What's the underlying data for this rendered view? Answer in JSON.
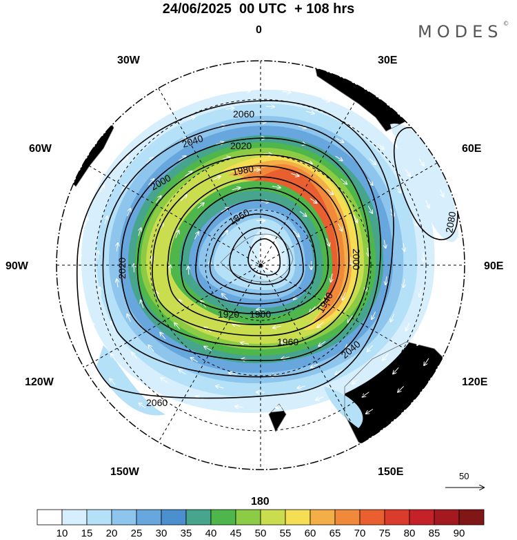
{
  "title": "24/06/2025  00 UTC  + 108 hrs",
  "brand": "MODES",
  "brand_mark": "©",
  "longitude_labels": [
    "0",
    "30E",
    "60E",
    "90E",
    "120E",
    "150E",
    "180",
    "150W",
    "120W",
    "90W",
    "60W",
    "30W"
  ],
  "contour_labels": [
    "2060",
    "2040",
    "2020",
    "2000",
    "1980",
    "1960",
    "1940",
    "1920",
    "1900",
    "1860",
    "2080",
    "2000",
    "2020",
    "2040",
    "2060"
  ],
  "reference_vector_label": "50",
  "colorbar": {
    "ticks": [
      "10",
      "15",
      "20",
      "25",
      "30",
      "35",
      "40",
      "45",
      "50",
      "55",
      "60",
      "65",
      "70",
      "75",
      "80",
      "85",
      "90"
    ],
    "colors": [
      "#ffffff",
      "#d7effc",
      "#b4e0f8",
      "#8ec5ec",
      "#67a7de",
      "#4b8fcf",
      "#46a58c",
      "#4fb64b",
      "#8ccc45",
      "#c9dd4e",
      "#f5de53",
      "#f4ae47",
      "#f08a3a",
      "#ea5f2f",
      "#db3b2a",
      "#c42228",
      "#a3191f",
      "#801616"
    ]
  },
  "colors": {
    "land": "#ededed",
    "coast": "#666666",
    "contour": "#000000",
    "vector": "#ffffff"
  }
}
